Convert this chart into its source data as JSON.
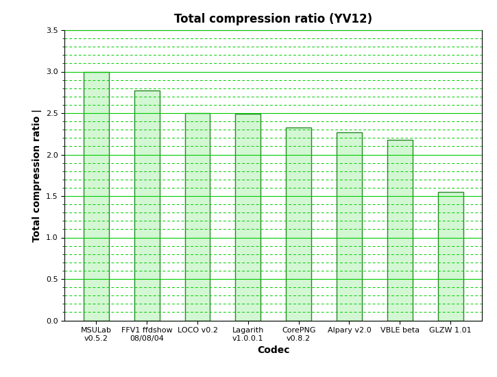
{
  "title": "Total compression ratio (YV12)",
  "xlabel": "Codec",
  "ylabel": "Total compression ratio |",
  "categories": [
    "MSULab\nv0.5.2",
    "FFV1 ffdshow\n08/08/04",
    "LOCO v0.2",
    "Lagarith\nv1.0.0.1",
    "CorePNG\nv0.8.2",
    "Alpary v2.0",
    "VBLE beta",
    "GLZW 1.01"
  ],
  "values": [
    3.0,
    2.77,
    2.5,
    2.49,
    2.33,
    2.27,
    2.18,
    1.55
  ],
  "bar_color": "#ccf5cc",
  "bar_edge_color": "#007700",
  "ylim": [
    0,
    3.5
  ],
  "yticks": [
    0,
    0.5,
    1.0,
    1.5,
    2.0,
    2.5,
    3.0,
    3.5
  ],
  "grid_major_color": "#00cc00",
  "grid_minor_color": "#00cc00",
  "background_color": "#ffffff",
  "title_fontsize": 12,
  "axis_label_fontsize": 10,
  "tick_label_fontsize": 8,
  "bar_width": 0.5
}
